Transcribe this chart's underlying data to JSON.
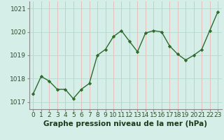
{
  "x": [
    0,
    1,
    2,
    3,
    4,
    5,
    6,
    7,
    8,
    9,
    10,
    11,
    12,
    13,
    14,
    15,
    16,
    17,
    18,
    19,
    20,
    21,
    22,
    23
  ],
  "y": [
    1017.35,
    1018.1,
    1017.9,
    1017.55,
    1017.55,
    1017.15,
    1017.55,
    1017.8,
    1019.0,
    1019.25,
    1019.8,
    1020.05,
    1019.6,
    1019.15,
    1019.95,
    1020.05,
    1020.0,
    1019.4,
    1019.05,
    1018.8,
    1019.0,
    1019.25,
    1020.05,
    1020.85
  ],
  "line_color": "#2d6b2d",
  "marker_color": "#2d6b2d",
  "bg_color": "#d6eee8",
  "grid_color": "#b8d8d0",
  "spine_color": "#888888",
  "xlabel": "Graphe pression niveau de la mer (hPa)",
  "ylim": [
    1016.7,
    1021.3
  ],
  "xlim": [
    -0.5,
    23.5
  ],
  "yticks": [
    1017,
    1018,
    1019,
    1020,
    1021
  ],
  "xticks": [
    0,
    1,
    2,
    3,
    4,
    5,
    6,
    7,
    8,
    9,
    10,
    11,
    12,
    13,
    14,
    15,
    16,
    17,
    18,
    19,
    20,
    21,
    22,
    23
  ],
  "tick_fontsize": 6.5,
  "xlabel_fontsize": 7.5,
  "linewidth": 1.0,
  "markersize": 2.2
}
